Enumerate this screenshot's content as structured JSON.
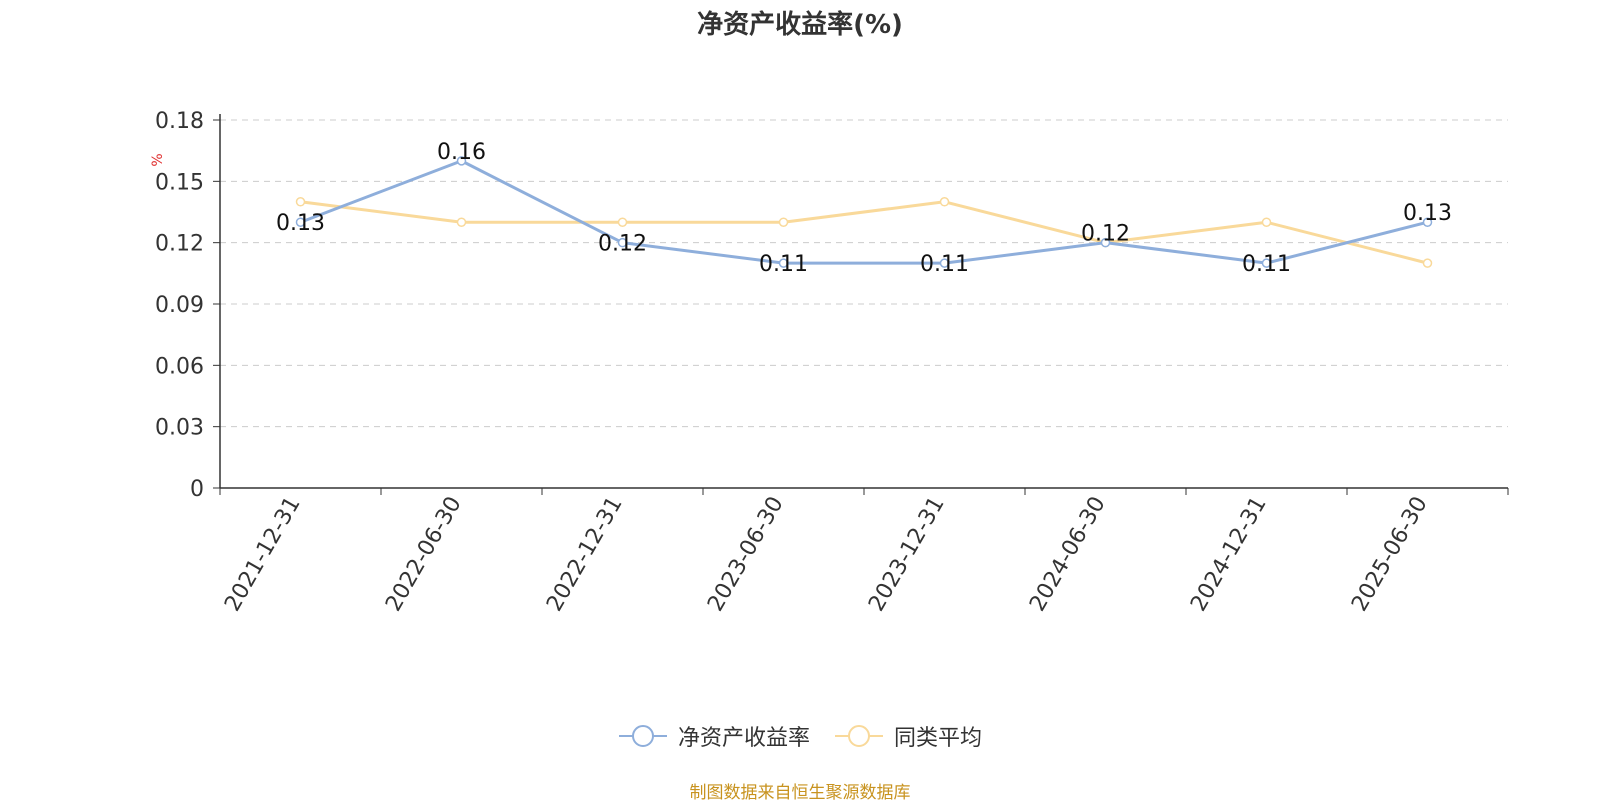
{
  "chart_data": {
    "type": "line",
    "title": "净资产收益率(%)",
    "ylabel": "%",
    "x": [
      "2021-12-31",
      "2022-06-30",
      "2022-12-31",
      "2023-06-30",
      "2023-12-31",
      "2024-06-30",
      "2024-12-31",
      "2025-06-30"
    ],
    "yticks": [
      "0",
      "0.03",
      "0.06",
      "0.09",
      "0.12",
      "0.15",
      "0.18"
    ],
    "ylim": [
      0,
      0.18
    ],
    "grid": true,
    "legend_position": "bottom",
    "series": [
      {
        "name": "净资产收益率",
        "color": "#8eaedb",
        "values": [
          0.13,
          0.16,
          0.12,
          0.11,
          0.11,
          0.12,
          0.11,
          0.13
        ],
        "labels": [
          "0.13",
          "0.16",
          "0.12",
          "0.11",
          "0.11",
          "0.12",
          "0.11",
          "0.13"
        ]
      },
      {
        "name": "同类平均",
        "color": "#f9d99a",
        "values": [
          0.14,
          0.13,
          0.13,
          0.13,
          0.14,
          0.12,
          0.13,
          0.11
        ]
      }
    ]
  },
  "source": "制图数据来自恒生聚源数据库"
}
